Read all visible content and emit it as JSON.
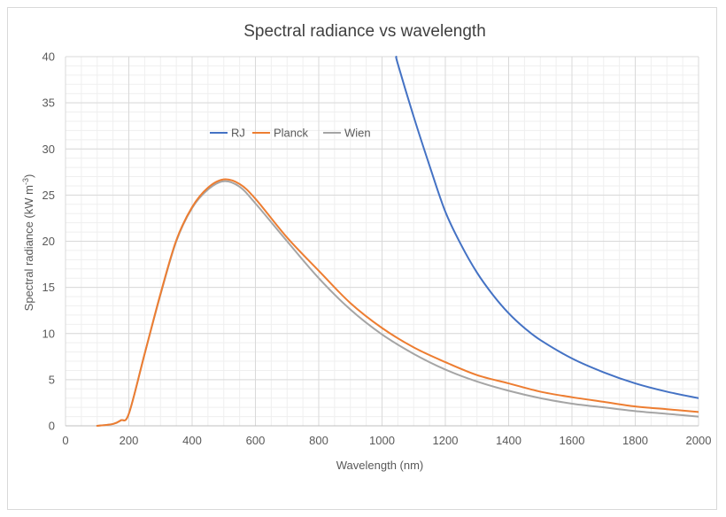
{
  "chart_data": {
    "type": "line",
    "title": "Spectral radiance vs wavelength",
    "xlabel": "Wavelength (nm)",
    "ylabel": "Spectral radiance (kW m",
    "ylabel_sup": "-3",
    "ylabel_close": ")",
    "xlim": [
      0,
      2000
    ],
    "ylim": [
      0,
      40
    ],
    "x_major_step": 200,
    "x_minor_step": 50,
    "y_major_step": 5,
    "y_minor_step": 1,
    "x_ticks": [
      "0",
      "200",
      "400",
      "600",
      "800",
      "1000",
      "1200",
      "1400",
      "1600",
      "1800",
      "2000"
    ],
    "y_ticks": [
      "0",
      "5",
      "10",
      "15",
      "20",
      "25",
      "30",
      "35",
      "40"
    ],
    "grid": true,
    "legend_position": "top-left",
    "series": [
      {
        "name": "RJ",
        "color": "#4472c4",
        "x": [
          1045,
          1050,
          1100,
          1150,
          1200,
          1250,
          1300,
          1350,
          1400,
          1450,
          1500,
          1600,
          1700,
          1800,
          1900,
          2000
        ],
        "y": [
          40,
          39.2,
          33.5,
          28.2,
          23.2,
          19.6,
          16.6,
          14.2,
          12.2,
          10.6,
          9.3,
          7.3,
          5.8,
          4.6,
          3.7,
          3.0
        ]
      },
      {
        "name": "Planck",
        "color": "#ed7d31",
        "x": [
          100,
          150,
          175,
          200,
          250,
          300,
          350,
          400,
          450,
          500,
          550,
          600,
          700,
          800,
          900,
          1000,
          1100,
          1200,
          1300,
          1400,
          1500,
          1600,
          1700,
          1800,
          1900,
          2000
        ],
        "y": [
          0,
          0.2,
          0.6,
          1.3,
          7.8,
          14.3,
          20.1,
          23.7,
          25.8,
          26.7,
          26.2,
          24.6,
          20.4,
          16.8,
          13.3,
          10.6,
          8.5,
          6.9,
          5.5,
          4.6,
          3.7,
          3.1,
          2.6,
          2.1,
          1.8,
          1.5
        ]
      },
      {
        "name": "Wien",
        "color": "#a5a5a5",
        "x": [
          100,
          150,
          175,
          200,
          250,
          300,
          350,
          400,
          450,
          500,
          550,
          600,
          700,
          800,
          900,
          1000,
          1100,
          1200,
          1300,
          1400,
          1500,
          1600,
          1700,
          1800,
          1900,
          2000
        ],
        "y": [
          0,
          0.2,
          0.6,
          1.3,
          7.8,
          14.2,
          20.0,
          23.6,
          25.6,
          26.5,
          25.9,
          24.1,
          20.0,
          16.0,
          12.6,
          9.9,
          7.8,
          6.1,
          4.8,
          3.8,
          3.0,
          2.4,
          2.0,
          1.6,
          1.3,
          1.0
        ]
      }
    ]
  }
}
